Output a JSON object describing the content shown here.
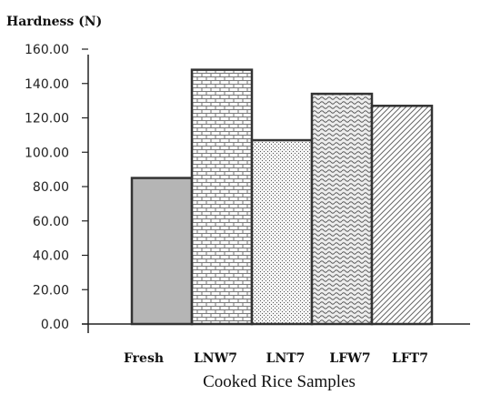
{
  "chart_data": {
    "type": "bar",
    "ylabel": "Hardness (N)",
    "xlabel": "Cooked Rice Samples",
    "categories": [
      "Fresh",
      "LNW7",
      "LNT7",
      "LFW7",
      "LFT7"
    ],
    "values": [
      85,
      148,
      107,
      134,
      127
    ],
    "ylim": [
      0,
      160
    ],
    "yticks": [
      "0.00",
      "20.00",
      "40.00",
      "60.00",
      "80.00",
      "100.00",
      "120.00",
      "140.00",
      "160.00"
    ],
    "grid": false,
    "legend": "none",
    "fills": [
      "solid-gray",
      "brick",
      "dots",
      "waves",
      "diagonal-hatch"
    ],
    "colors": {
      "bar_outline": "#333333",
      "fresh_fill": "#b5b5b5",
      "axis": "#222222"
    }
  }
}
